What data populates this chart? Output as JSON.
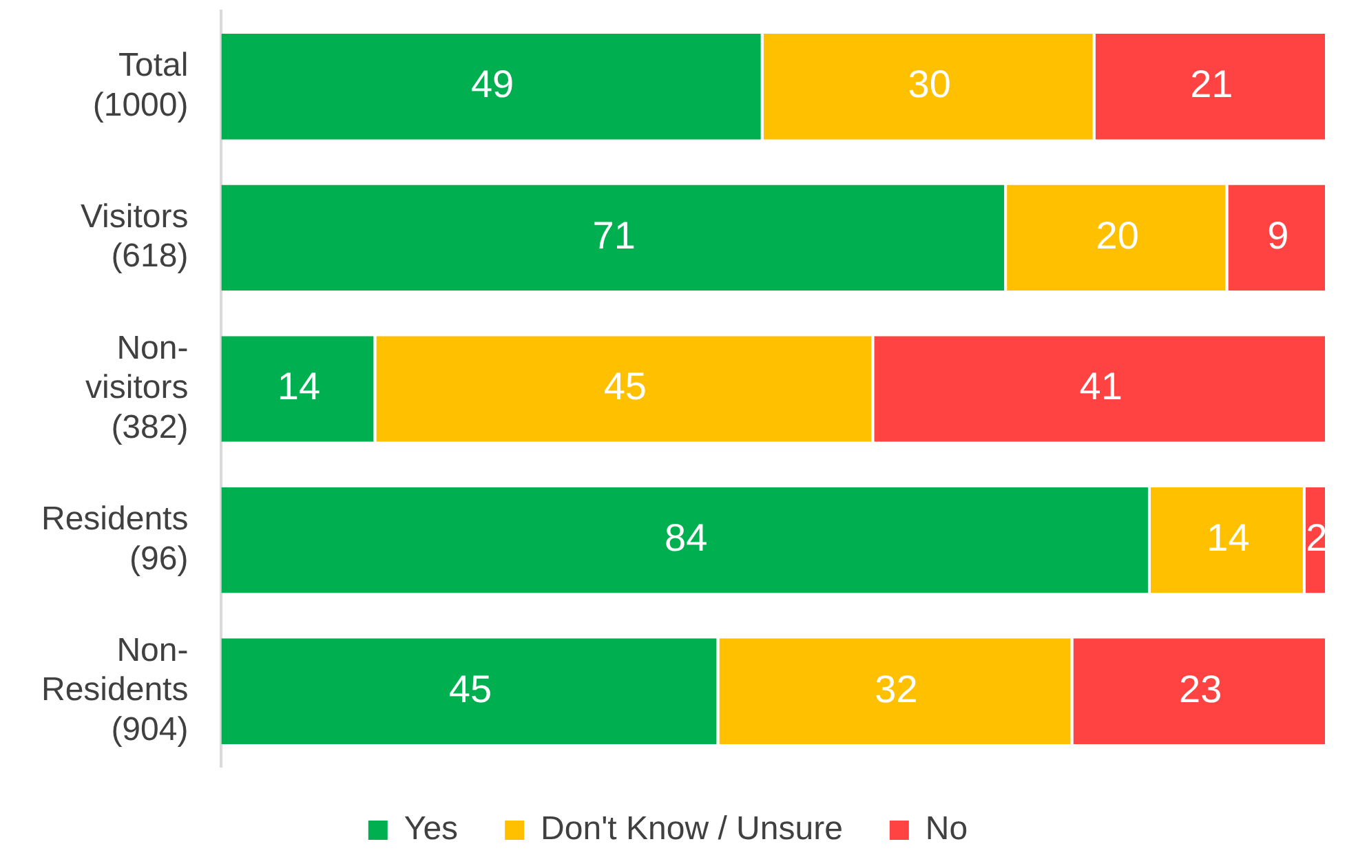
{
  "chart_data": {
    "type": "bar",
    "orientation": "horizontal",
    "stacked": true,
    "categories": [
      "Total\n(1000)",
      "Visitors\n(618)",
      "Non-\nvisitors\n(382)",
      "Residents\n(96)",
      "Non-\nResidents\n(904)"
    ],
    "series": [
      {
        "name": "Yes",
        "color": "#00b050",
        "values": [
          49,
          71,
          14,
          84,
          45
        ]
      },
      {
        "name": "Don't Know / Unsure",
        "color": "#ffc000",
        "values": [
          30,
          20,
          45,
          14,
          32
        ]
      },
      {
        "name": "No",
        "color": "#ff4343",
        "values": [
          21,
          9,
          41,
          2,
          23
        ]
      }
    ],
    "xlim": [
      0,
      100
    ],
    "tick_labels": "y",
    "legend": "bottom",
    "data_labels": true
  }
}
